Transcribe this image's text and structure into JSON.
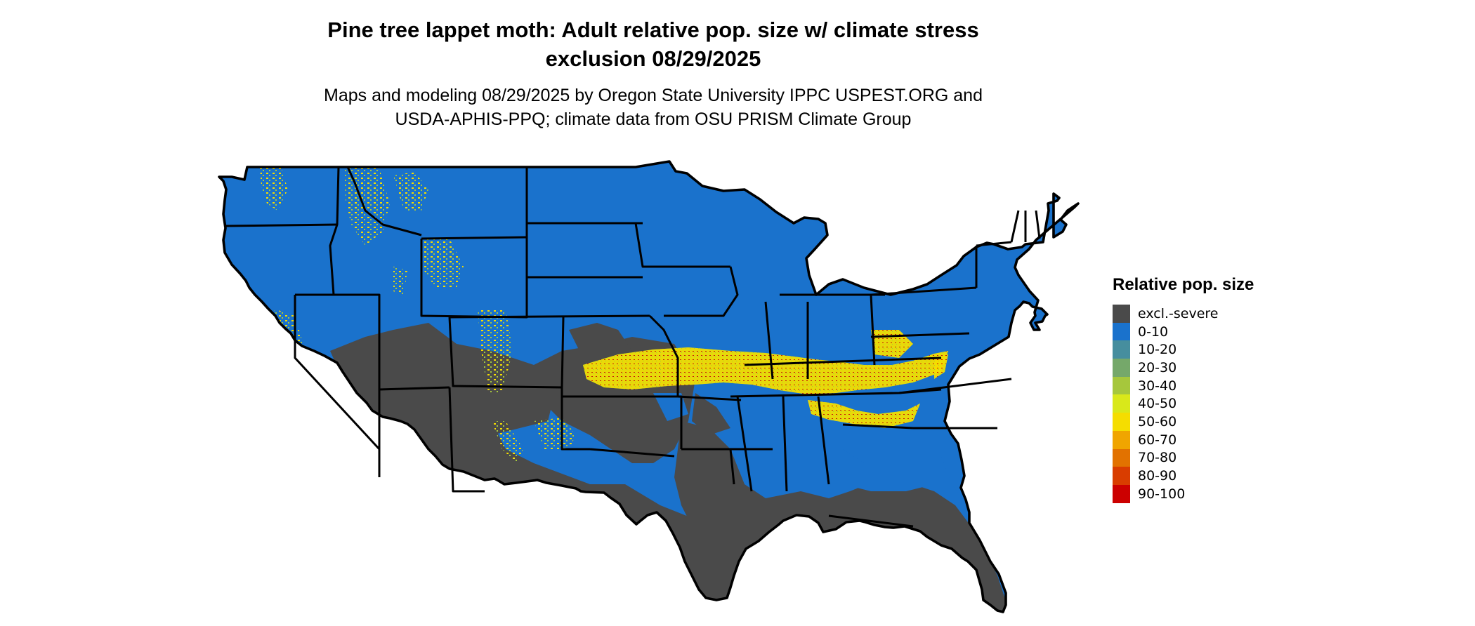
{
  "title": {
    "line1": "Pine tree lappet moth: Adult relative pop. size w/ climate stress",
    "line2": "exclusion 08/29/2025"
  },
  "subtitle": {
    "line1": "Maps and modeling 08/29/2025 by Oregon State University IPPC USPEST.ORG and",
    "line2": "USDA-APHIS-PPQ; climate data from OSU PRISM Climate Group"
  },
  "legend": {
    "title": "Relative pop. size",
    "items": [
      {
        "label": "excl.-severe",
        "color": "#4a4a4a"
      },
      {
        "label": "0-10",
        "color": "#1a72cc"
      },
      {
        "label": "10-20",
        "color": "#468e9e"
      },
      {
        "label": "20-30",
        "color": "#75a86a"
      },
      {
        "label": "30-40",
        "color": "#a6c73c"
      },
      {
        "label": "40-50",
        "color": "#d9e81a"
      },
      {
        "label": "50-60",
        "color": "#f5dd00"
      },
      {
        "label": "60-70",
        "color": "#f0a500"
      },
      {
        "label": "70-80",
        "color": "#e27200"
      },
      {
        "label": "80-90",
        "color": "#d93d00"
      },
      {
        "label": "90-100",
        "color": "#cc0000"
      }
    ]
  },
  "map": {
    "region": "Contiguous United States",
    "colors": {
      "land_default": "#1a72cc",
      "excluded": "#4a4a4a",
      "mid_band": "#a6c73c",
      "high_band": "#f5dd00",
      "hotspot": "#cc0000",
      "border": "#000000"
    }
  }
}
